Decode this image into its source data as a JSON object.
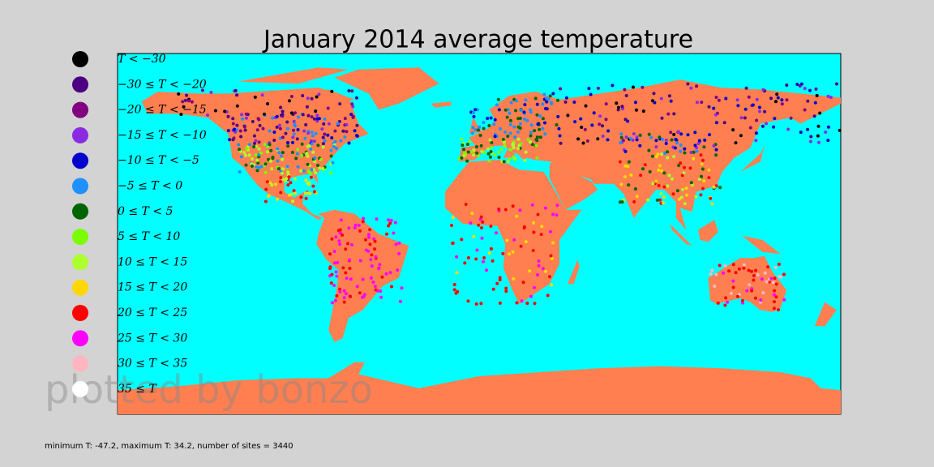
{
  "title": "January 2014 average temperature",
  "legend": [
    {
      "label": "T < −30",
      "color": "#000000"
    },
    {
      "label": "−30 ≤ T < −20",
      "color": "#4b0082"
    },
    {
      "label": "−20 ≤ T < −15",
      "color": "#800080"
    },
    {
      "label": "−15 ≤ T < −10",
      "color": "#8a2be2"
    },
    {
      "label": "−10 ≤ T < −5",
      "color": "#0000cd"
    },
    {
      "label": "−5 ≤ T < 0",
      "color": "#1e90ff"
    },
    {
      "label": "0 ≤ T < 5",
      "color": "#006400"
    },
    {
      "label": "5 ≤ T < 10",
      "color": "#7cfc00"
    },
    {
      "label": "10 ≤ T < 15",
      "color": "#adff2f"
    },
    {
      "label": "15 ≤ T < 20",
      "color": "#ffd700"
    },
    {
      "label": "20 ≤ T < 25",
      "color": "#ff0000"
    },
    {
      "label": "25 ≤ T < 30",
      "color": "#ff00ff"
    },
    {
      "label": "30 ≤ T < 35",
      "color": "#ffb6c1"
    },
    {
      "label": "35 ≤ T",
      "color": "#ffffff"
    }
  ],
  "watermark": "plotted by bonzo",
  "footer": "minimum T: -47.2, maximum T:  34.2, number of sites = 3440"
}
